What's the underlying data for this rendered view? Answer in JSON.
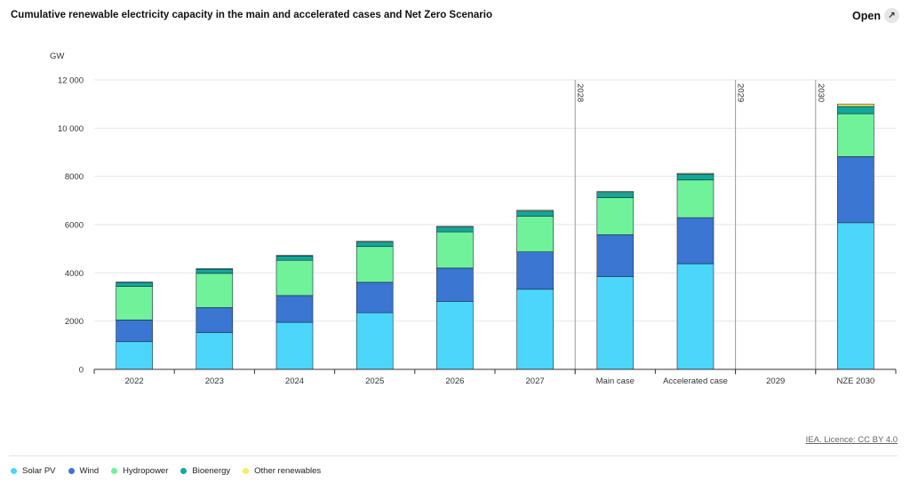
{
  "header": {
    "title": "Cumulative renewable electricity capacity in the main and accelerated cases and Net Zero Scenario",
    "open_label": "Open"
  },
  "footer": {
    "licence": "IEA. Licence: CC BY 4.0"
  },
  "colors": {
    "solar": "#4dd6fb",
    "wind": "#3a76d2",
    "hydro": "#6ff29a",
    "bio": "#10a89a",
    "other": "#f7ee5b"
  },
  "chart_data": {
    "type": "bar",
    "stacked": true,
    "ylabel": "GW",
    "ylim": [
      0,
      12000
    ],
    "yticks": [
      0,
      2000,
      4000,
      6000,
      8000,
      10000,
      12000
    ],
    "ytick_labels": [
      "0",
      "2000",
      "4000",
      "6000",
      "8000",
      "10 000",
      "12 000"
    ],
    "grid": true,
    "legend_position": "bottom",
    "categories": [
      "2022",
      "2023",
      "2024",
      "2025",
      "2026",
      "2027",
      "Main case",
      "Accelerated case",
      "2029",
      "NZE 2030"
    ],
    "group_labels": [
      "2028",
      "2029",
      "2030"
    ],
    "series": [
      {
        "name": "Solar PV",
        "color_key": "solar",
        "values": [
          1150,
          1530,
          1950,
          2350,
          2820,
          3320,
          3850,
          4380,
          null,
          6080
        ]
      },
      {
        "name": "Wind",
        "color_key": "wind",
        "values": [
          900,
          1030,
          1110,
          1260,
          1380,
          1550,
          1730,
          1910,
          null,
          2740
        ]
      },
      {
        "name": "Hydropower",
        "color_key": "hydro",
        "values": [
          1390,
          1420,
          1460,
          1480,
          1500,
          1480,
          1540,
          1560,
          null,
          1780
        ]
      },
      {
        "name": "Bioenergy",
        "color_key": "bio",
        "values": [
          160,
          170,
          180,
          190,
          200,
          210,
          220,
          240,
          null,
          300
        ]
      },
      {
        "name": "Other renewables",
        "color_key": "other",
        "values": [
          20,
          25,
          25,
          30,
          30,
          35,
          35,
          40,
          null,
          100
        ]
      }
    ]
  }
}
